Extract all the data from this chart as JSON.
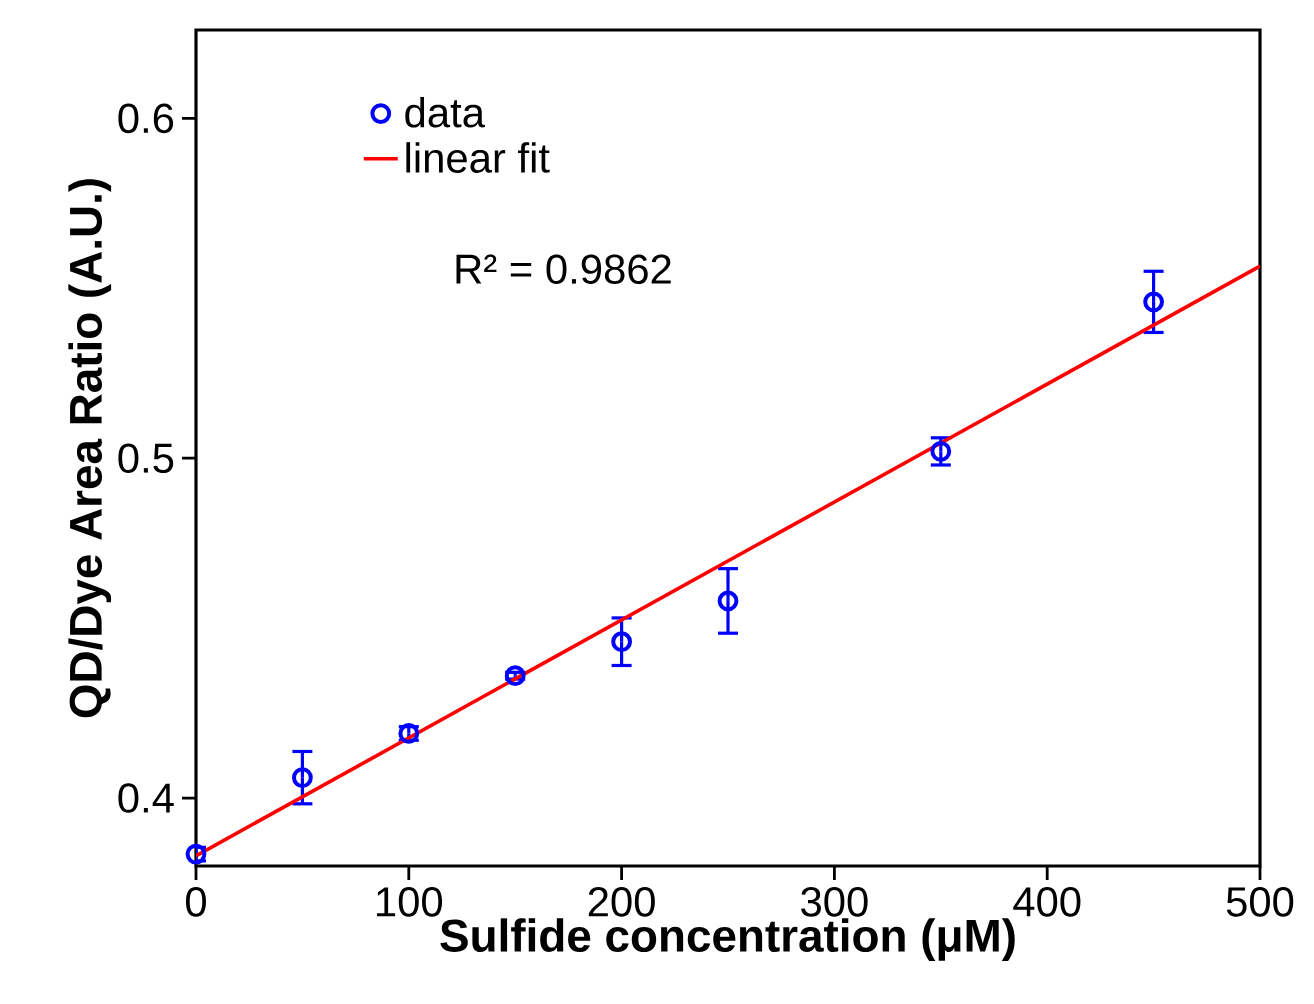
{
  "chart_data": {
    "type": "scatter",
    "xlabel": "Sulfide concentration (μM)",
    "ylabel": "QD/Dye Area Ratio (A.U.)",
    "xlim": [
      0,
      500
    ],
    "ylim": [
      0.38,
      0.626
    ],
    "xticks": [
      0,
      100,
      200,
      300,
      400,
      500
    ],
    "yticks": [
      0.4,
      0.5,
      0.6
    ],
    "marker": "circle",
    "grid": false,
    "legend": "top left",
    "annotations": [
      "R² = 0.9862"
    ],
    "series": [
      {
        "name": "data",
        "color": "#0000ff",
        "x": [
          0,
          50,
          100,
          150,
          200,
          250,
          350,
          450
        ],
        "values": [
          0.3835,
          0.406,
          0.419,
          0.436,
          0.446,
          0.458,
          0.502,
          0.546
        ],
        "errors": [
          0.002,
          0.0077,
          0.002,
          0.001,
          0.007,
          0.0095,
          0.004,
          0.009
        ]
      },
      {
        "name": "linear fit",
        "type": "line",
        "marker": "none",
        "line_style": "solid",
        "color": "#ff0000",
        "x": [
          0,
          500
        ],
        "values": [
          0.383,
          0.5565
        ]
      }
    ]
  }
}
